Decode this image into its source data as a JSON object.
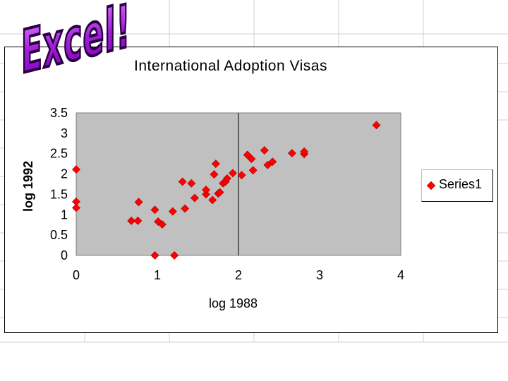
{
  "logo_text": "Excel!",
  "chart_data": {
    "type": "scatter",
    "title": "International Adoption Visas",
    "xlabel": "log 1988",
    "ylabel": "log 1992",
    "xlim": [
      0,
      4
    ],
    "ylim": [
      0,
      3.5
    ],
    "xticks": [
      "0",
      "1",
      "2",
      "3",
      "4"
    ],
    "yticks": [
      "0",
      "0.5",
      "1",
      "1.5",
      "2",
      "2.5",
      "3",
      "3.5"
    ],
    "grid": "vertical line at x=2",
    "legend": "right",
    "plot_background": "#c0c0c0",
    "marker_color": "#ff0000",
    "series": [
      {
        "name": "Series1",
        "points": [
          [
            0,
            2.11
          ],
          [
            0,
            1.32
          ],
          [
            0,
            1.17
          ],
          [
            0.68,
            0.85
          ],
          [
            0.76,
            0.85
          ],
          [
            0.77,
            1.31
          ],
          [
            0.97,
            0
          ],
          [
            0.97,
            1.12
          ],
          [
            1.01,
            0.83
          ],
          [
            1.06,
            0.76
          ],
          [
            1.19,
            1.08
          ],
          [
            1.21,
            0
          ],
          [
            1.31,
            1.81
          ],
          [
            1.34,
            1.15
          ],
          [
            1.42,
            1.77
          ],
          [
            1.46,
            1.41
          ],
          [
            1.6,
            1.5
          ],
          [
            1.6,
            1.61
          ],
          [
            1.68,
            1.36
          ],
          [
            1.7,
            1.99
          ],
          [
            1.72,
            2.25
          ],
          [
            1.75,
            1.52
          ],
          [
            1.77,
            1.55
          ],
          [
            1.81,
            1.77
          ],
          [
            1.84,
            1.81
          ],
          [
            1.86,
            1.89
          ],
          [
            1.93,
            2.02
          ],
          [
            2.04,
            1.97
          ],
          [
            2.11,
            2.47
          ],
          [
            2.16,
            2.37
          ],
          [
            2.18,
            2.09
          ],
          [
            2.32,
            2.58
          ],
          [
            2.36,
            2.22
          ],
          [
            2.42,
            2.3
          ],
          [
            2.66,
            2.51
          ],
          [
            2.81,
            2.49
          ],
          [
            2.81,
            2.55
          ],
          [
            3.7,
            3.2
          ]
        ]
      }
    ]
  }
}
